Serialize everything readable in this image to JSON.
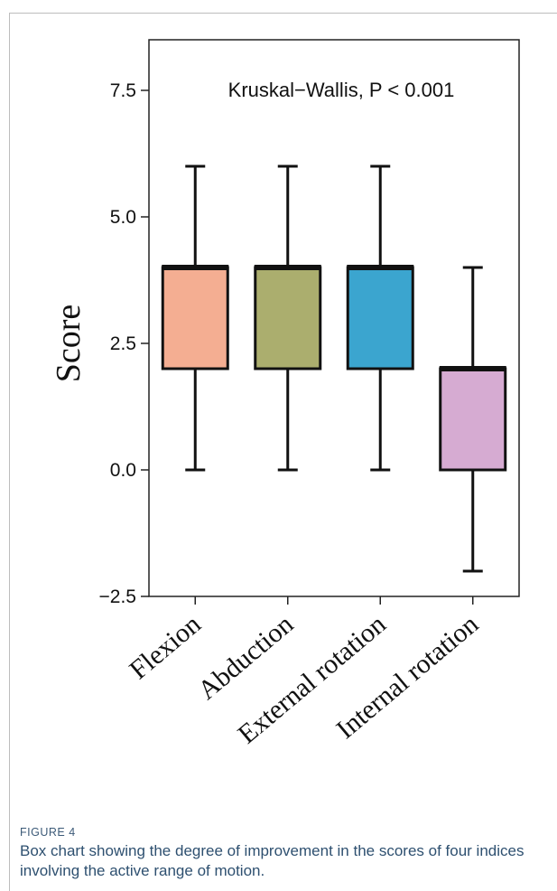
{
  "chart_data": {
    "type": "box",
    "ylabel": "Score",
    "ylim": [
      -2.5,
      8.5
    ],
    "yticks": [
      -2.5,
      0.0,
      2.5,
      5.0,
      7.5
    ],
    "ytick_labels": [
      "−2.5",
      "0.0",
      "2.5",
      "5.0",
      "7.5"
    ],
    "annotation": "Kruskal−Wallis, P < 0.001",
    "grid": false,
    "categories": [
      "Flexion",
      "Abduction",
      "External rotation",
      "Internal rotation"
    ],
    "boxes": [
      {
        "name": "Flexion",
        "whisker_low": 0,
        "q1": 2,
        "median": 4,
        "q3": 4,
        "whisker_high": 6,
        "color": "#F4AE92"
      },
      {
        "name": "Abduction",
        "whisker_low": 0,
        "q1": 2,
        "median": 4,
        "q3": 4,
        "whisker_high": 6,
        "color": "#ABAE6E"
      },
      {
        "name": "External rotation",
        "whisker_low": 0,
        "q1": 2,
        "median": 4,
        "q3": 4,
        "whisker_high": 6,
        "color": "#3BA5CF"
      },
      {
        "name": "Internal rotation",
        "whisker_low": -2,
        "q1": 0,
        "median": 2,
        "q3": 2,
        "whisker_high": 4,
        "color": "#D6ABD2"
      }
    ]
  },
  "caption": {
    "label": "FIGURE 4",
    "text": "Box chart showing the degree of improvement in the scores of four indices involving the active range of motion."
  }
}
